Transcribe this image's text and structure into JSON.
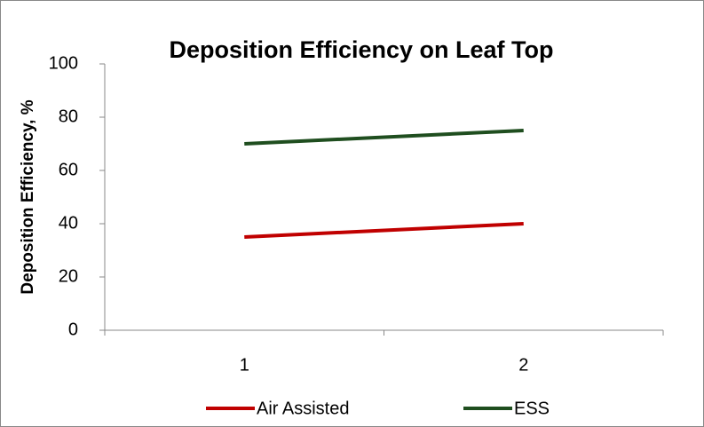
{
  "chart_data": {
    "type": "line",
    "title": "Deposition Efficiency on Leaf Top",
    "y_label": "Deposition Efficiency, %",
    "categories": [
      "1",
      "2"
    ],
    "series": [
      {
        "name": "Air Assisted",
        "color": "#c00000",
        "values": [
          35,
          40
        ]
      },
      {
        "name": "ESS",
        "color": "#1f4e1f",
        "values": [
          70,
          75
        ]
      }
    ],
    "ylim": [
      0,
      100
    ],
    "yticks": [
      0,
      20,
      40,
      60,
      80,
      100
    ],
    "grid": false,
    "legend": "bottom"
  }
}
